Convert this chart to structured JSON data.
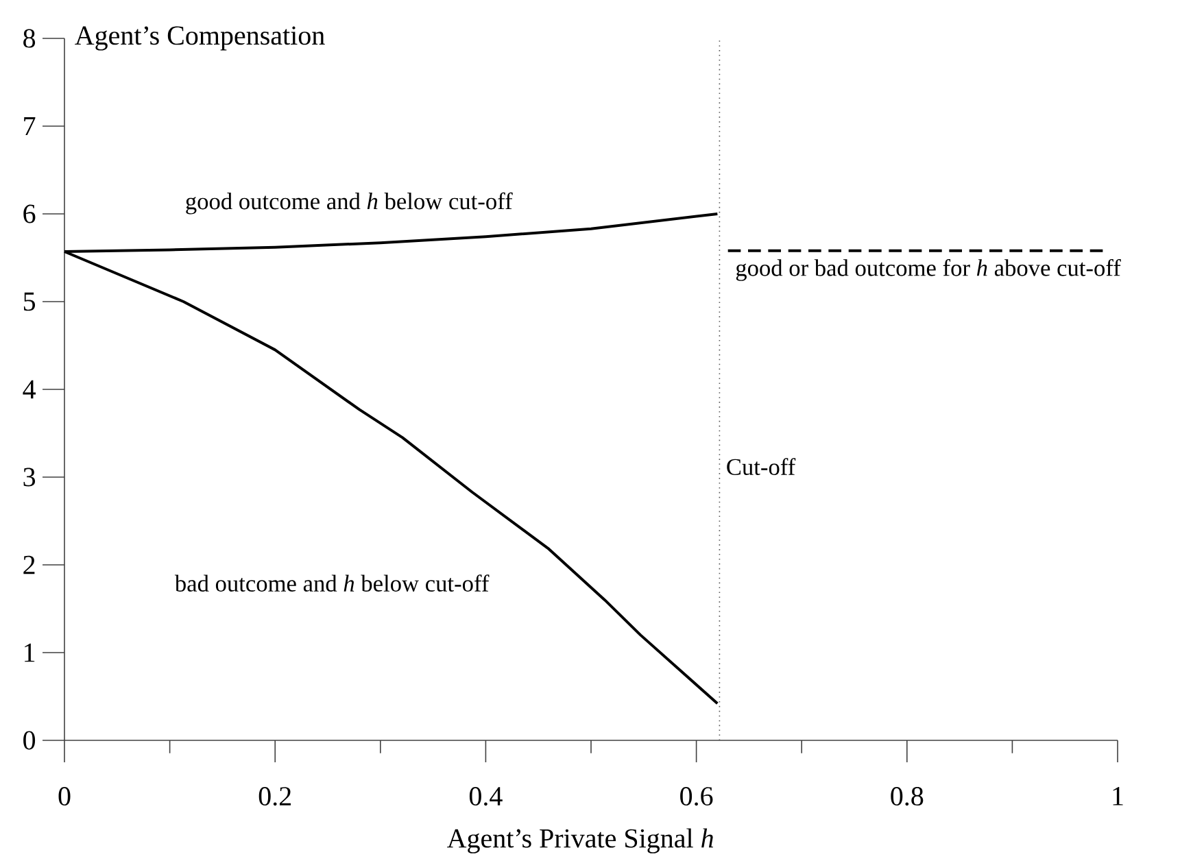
{
  "chart_data": {
    "type": "line",
    "xlabel": "Agent’s Private Signal *h*",
    "ylabel": "Agent’s Compensation",
    "xlim": [
      0,
      1
    ],
    "ylim": [
      0,
      8
    ],
    "xticks": [
      0,
      {
        "value": 0.1,
        "label": null
      },
      0.2,
      {
        "value": 0.3,
        "label": null
      },
      0.4,
      {
        "value": 0.5,
        "label": null
      },
      0.6,
      {
        "value": 0.7,
        "label": null
      },
      0.8,
      {
        "value": 0.9,
        "label": null
      },
      1
    ],
    "yticks": [
      0,
      1,
      2,
      3,
      4,
      5,
      6,
      7,
      8
    ],
    "series": [
      {
        "name": "good outcome and *h* below cut-off",
        "color": "#000000",
        "line_style": "solid",
        "x": [
          0,
          0.1,
          0.2,
          0.3,
          0.4,
          0.5,
          0.62
        ],
        "values": [
          5.57,
          5.59,
          5.62,
          5.67,
          5.74,
          5.83,
          6.0
        ]
      },
      {
        "name": "bad outcome and *h* below cut-off",
        "color": "#000000",
        "line_style": "solid",
        "x": [
          0,
          0.113,
          0.2,
          0.28,
          0.321,
          0.387,
          0.46,
          0.513,
          0.547,
          0.62
        ],
        "values": [
          5.57,
          5.0,
          4.45,
          3.77,
          3.45,
          2.83,
          2.18,
          1.6,
          1.2,
          0.42
        ]
      },
      {
        "name": "good or bad outcome for *h* above cut-off",
        "color": "#000000",
        "line_style": "dashed",
        "x": [
          0.63,
          0.99
        ],
        "values": [
          5.58,
          5.58
        ]
      }
    ],
    "ref_lines": [
      {
        "axis": "x",
        "value": 0.622,
        "label": "Cut-off",
        "color": "#555555",
        "line_style": "dotted"
      }
    ]
  }
}
